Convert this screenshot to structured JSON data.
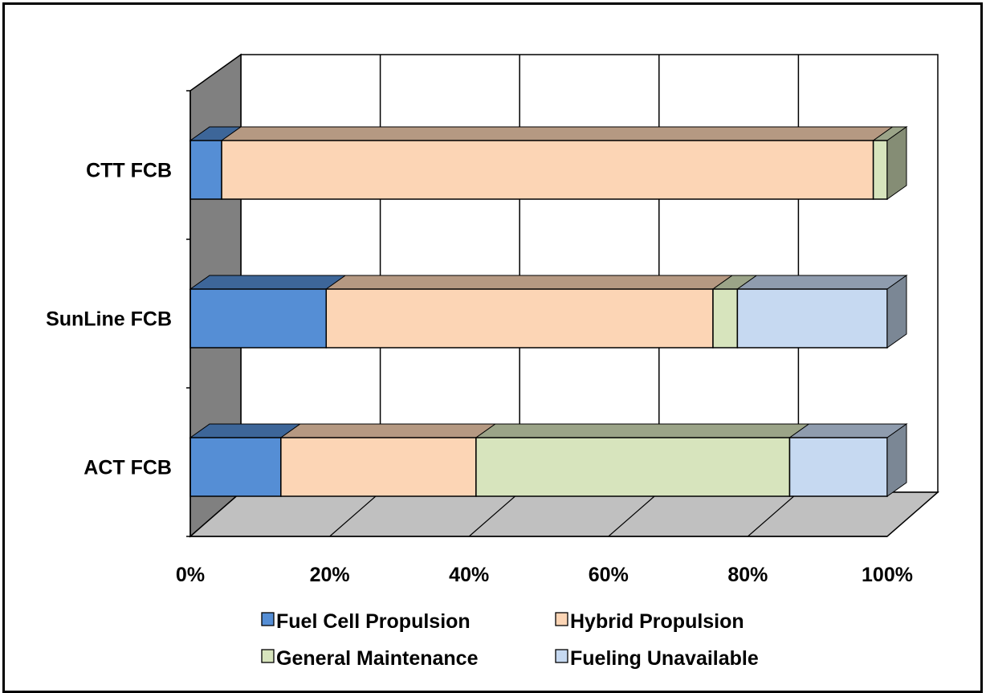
{
  "chart_data": {
    "type": "bar",
    "orientation": "horizontal",
    "stacked": "percent",
    "style": "3d",
    "categories": [
      "CTT FCB",
      "SunLine FCB",
      "ACT FCB"
    ],
    "series": [
      {
        "name": "Fuel Cell Propulsion",
        "values": [
          4.5,
          19.5,
          13
        ],
        "color": "#558ed5"
      },
      {
        "name": "Hybrid Propulsion",
        "values": [
          93.5,
          55.5,
          28
        ],
        "color": "#fcd5b5"
      },
      {
        "name": "General Maintenance",
        "values": [
          2,
          3.5,
          45
        ],
        "color": "#d7e4bd"
      },
      {
        "name": "Fueling Unavailable",
        "values": [
          0,
          21.5,
          14
        ],
        "color": "#c6d9f1"
      }
    ],
    "xlim": [
      0,
      100
    ],
    "xticks": [
      "0%",
      "20%",
      "40%",
      "60%",
      "80%",
      "100%"
    ],
    "grid": true,
    "legend_position": "bottom",
    "title": "",
    "xlabel": "",
    "ylabel": ""
  }
}
